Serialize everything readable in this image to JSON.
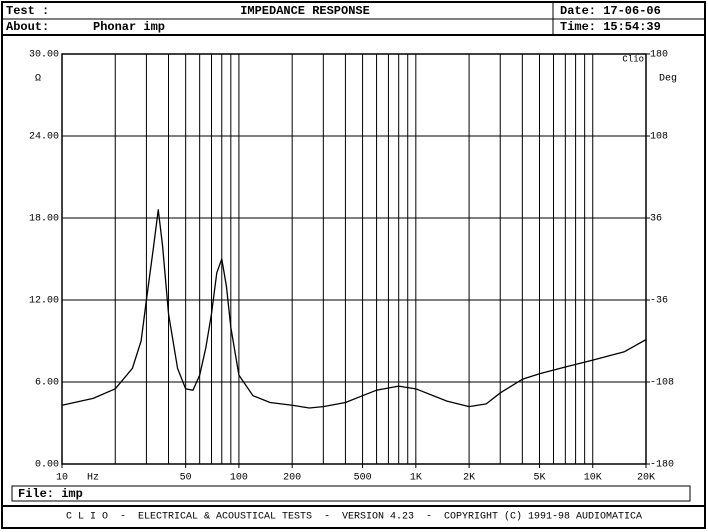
{
  "header": {
    "test_label": "Test :",
    "about_label": "About:",
    "about": "Phonar imp",
    "date": "Date: 17-06-06",
    "time": "Time: 15:54:39"
  },
  "chart_data": {
    "type": "line",
    "title": "IMPEDANCE RESPONSE",
    "ylabel": "Ω",
    "y2label": "Deg",
    "xlabel": "Hz",
    "brand": "Clio",
    "xscale": "log",
    "xlim": [
      10,
      20000
    ],
    "ylim": [
      0,
      30
    ],
    "y2lim": [
      -180,
      180
    ],
    "grid": true,
    "xticks": [
      10,
      50,
      100,
      200,
      500,
      {
        "value": 1000,
        "label": "1K"
      },
      {
        "value": 2000,
        "label": "2K"
      },
      {
        "value": 5000,
        "label": "5K"
      },
      {
        "value": 10000,
        "label": "10K"
      },
      {
        "value": 20000,
        "label": "20K"
      }
    ],
    "xgrid": [
      10,
      20,
      30,
      40,
      50,
      60,
      70,
      80,
      90,
      100,
      200,
      300,
      400,
      500,
      600,
      700,
      800,
      900,
      1000,
      2000,
      3000,
      4000,
      5000,
      6000,
      7000,
      8000,
      9000,
      10000,
      20000
    ],
    "yticks": [
      {
        "value": 0,
        "label": "0.00"
      },
      {
        "value": 6,
        "label": "6.00"
      },
      {
        "value": 12,
        "label": "12.00"
      },
      {
        "value": 18,
        "label": "18.00"
      },
      {
        "value": 24,
        "label": "24.00"
      },
      {
        "value": 30,
        "label": "30.00"
      }
    ],
    "y2ticks": [
      -180,
      -108,
      -36,
      36,
      108,
      180
    ],
    "x": [
      10,
      15,
      20,
      25,
      28,
      30,
      33,
      35,
      37,
      40,
      45,
      50,
      55,
      60,
      65,
      70,
      75,
      80,
      85,
      90,
      100,
      120,
      150,
      200,
      250,
      300,
      400,
      500,
      600,
      800,
      1000,
      1500,
      2000,
      2500,
      3000,
      4000,
      5000,
      7000,
      10000,
      15000,
      20000
    ],
    "series": [
      {
        "name": "imp",
        "color": "#000000",
        "values": [
          4.3,
          4.8,
          5.5,
          7,
          9,
          12,
          16,
          18.6,
          16,
          11,
          7,
          5.5,
          5.4,
          6.5,
          8.5,
          11,
          14,
          15,
          13,
          10,
          6.5,
          5,
          4.5,
          4.3,
          4.1,
          4.2,
          4.5,
          5,
          5.4,
          5.7,
          5.5,
          4.6,
          4.2,
          4.4,
          5.2,
          6.2,
          6.6,
          7.1,
          7.6,
          8.2,
          9.1
        ]
      }
    ]
  },
  "file": "File: imp",
  "footer": "C L I O  -  ELECTRICAL & ACOUSTICAL TESTS  -  VERSION 4.23  -  COPYRIGHT (C) 1991-98 AUDIOMATICA"
}
